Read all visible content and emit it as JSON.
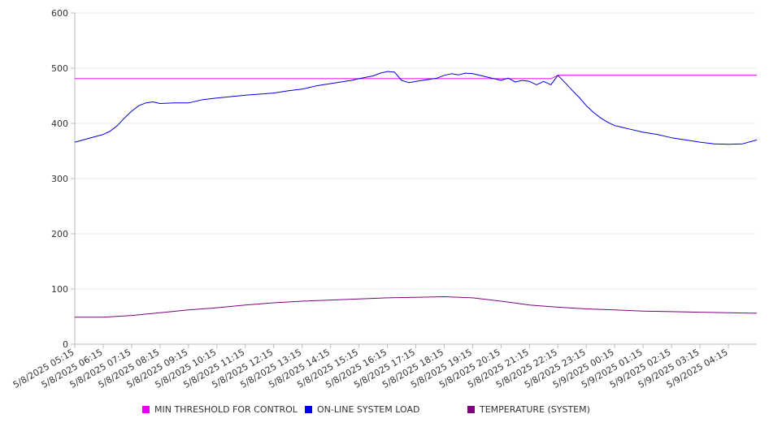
{
  "chart_data": {
    "type": "line",
    "title": "",
    "xlabel": "",
    "ylabel": "",
    "ylim": [
      0,
      600
    ],
    "y_ticks": [
      0,
      100,
      200,
      300,
      400,
      500,
      600
    ],
    "grid": true,
    "legend_position": "bottom",
    "x_start": "5/8/2025 05:15",
    "x_tick_labels": [
      "5/8/2025 05:15",
      "5/8/2025 06:15",
      "5/8/2025 07:15",
      "5/8/2025 08:15",
      "5/8/2025 09:15",
      "5/8/2025 10:15",
      "5/8/2025 11:15",
      "5/8/2025 12:15",
      "5/8/2025 13:15",
      "5/8/2025 14:15",
      "5/8/2025 15:15",
      "5/8/2025 16:15",
      "5/8/2025 17:15",
      "5/8/2025 18:15",
      "5/8/2025 19:15",
      "5/8/2025 20:15",
      "5/8/2025 21:15",
      "5/8/2025 22:15",
      "5/8/2025 23:15",
      "5/9/2025 00:15",
      "5/9/2025 01:15",
      "5/9/2025 02:15",
      "5/9/2025 03:15",
      "5/9/2025 04:15"
    ],
    "x_end": "5/9/2025 05:15",
    "series": [
      {
        "name": "MIN THRESHOLD FOR CONTROL",
        "color": "#e600e6",
        "x": [
          "5/8/2025 05:15",
          "5/8/2025 22:00",
          "5/8/2025 22:15",
          "5/9/2025 05:15"
        ],
        "values": [
          481,
          481,
          487,
          487
        ]
      },
      {
        "name": "ON-LINE SYSTEM LOAD",
        "color": "#0000e6",
        "x": [
          "5/8/2025 05:15",
          "5/8/2025 05:45",
          "5/8/2025 06:15",
          "5/8/2025 06:30",
          "5/8/2025 06:45",
          "5/8/2025 07:00",
          "5/8/2025 07:15",
          "5/8/2025 07:30",
          "5/8/2025 07:45",
          "5/8/2025 08:00",
          "5/8/2025 08:15",
          "5/8/2025 08:45",
          "5/8/2025 09:15",
          "5/8/2025 09:45",
          "5/8/2025 10:15",
          "5/8/2025 11:15",
          "5/8/2025 12:15",
          "5/8/2025 12:45",
          "5/8/2025 13:15",
          "5/8/2025 13:45",
          "5/8/2025 14:15",
          "5/8/2025 14:45",
          "5/8/2025 15:00",
          "5/8/2025 15:15",
          "5/8/2025 15:45",
          "5/8/2025 16:00",
          "5/8/2025 16:15",
          "5/8/2025 16:30",
          "5/8/2025 16:45",
          "5/8/2025 17:00",
          "5/8/2025 17:15",
          "5/8/2025 17:45",
          "5/8/2025 18:00",
          "5/8/2025 18:15",
          "5/8/2025 18:30",
          "5/8/2025 18:45",
          "5/8/2025 19:00",
          "5/8/2025 19:15",
          "5/8/2025 19:30",
          "5/8/2025 19:45",
          "5/8/2025 20:00",
          "5/8/2025 20:15",
          "5/8/2025 20:30",
          "5/8/2025 20:45",
          "5/8/2025 21:00",
          "5/8/2025 21:15",
          "5/8/2025 21:30",
          "5/8/2025 21:45",
          "5/8/2025 22:00",
          "5/8/2025 22:15",
          "5/8/2025 22:30",
          "5/8/2025 22:45",
          "5/8/2025 23:00",
          "5/8/2025 23:15",
          "5/8/2025 23:30",
          "5/8/2025 23:45",
          "5/9/2025 00:00",
          "5/9/2025 00:15",
          "5/9/2025 00:45",
          "5/9/2025 01:15",
          "5/9/2025 01:45",
          "5/9/2025 02:15",
          "5/9/2025 02:45",
          "5/9/2025 03:15",
          "5/9/2025 03:45",
          "5/9/2025 04:15",
          "5/9/2025 04:45",
          "5/9/2025 05:15"
        ],
        "values": [
          366,
          373,
          380,
          386,
          396,
          410,
          422,
          432,
          437,
          439,
          436,
          437,
          437,
          443,
          446,
          451,
          455,
          459,
          462,
          468,
          472,
          476,
          478,
          481,
          486,
          491,
          494,
          493,
          478,
          474,
          476,
          480,
          482,
          487,
          490,
          488,
          491,
          490,
          487,
          484,
          481,
          478,
          482,
          475,
          478,
          476,
          470,
          476,
          470,
          487,
          474,
          460,
          447,
          432,
          420,
          410,
          402,
          396,
          390,
          384,
          380,
          374,
          370,
          366,
          363,
          362,
          363,
          370
        ]
      },
      {
        "name": "TEMPERATURE (SYSTEM)",
        "color": "#800080",
        "x": [
          "5/8/2025 05:15",
          "5/8/2025 06:15",
          "5/8/2025 07:15",
          "5/8/2025 08:15",
          "5/8/2025 09:15",
          "5/8/2025 10:15",
          "5/8/2025 11:15",
          "5/8/2025 12:15",
          "5/8/2025 13:15",
          "5/8/2025 14:15",
          "5/8/2025 15:15",
          "5/8/2025 16:15",
          "5/8/2025 17:15",
          "5/8/2025 18:15",
          "5/8/2025 19:15",
          "5/8/2025 20:15",
          "5/8/2025 21:15",
          "5/8/2025 22:15",
          "5/8/2025 23:15",
          "5/9/2025 00:15",
          "5/9/2025 01:15",
          "5/9/2025 02:15",
          "5/9/2025 03:15",
          "5/9/2025 04:15",
          "5/9/2025 05:15"
        ],
        "values": [
          49,
          49,
          52,
          57,
          62,
          66,
          71,
          75,
          78,
          80,
          82,
          84,
          85,
          86,
          84,
          78,
          71,
          67,
          64,
          62,
          60,
          59,
          58,
          57,
          56
        ]
      }
    ]
  }
}
